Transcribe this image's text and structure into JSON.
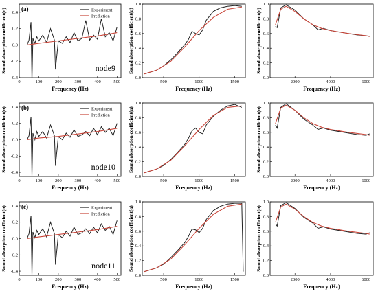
{
  "colors": {
    "experiment": "#222222",
    "prediction": "#c9463a",
    "axes": "#000000"
  },
  "chart_data": [
    {
      "type": "line",
      "row": 0,
      "col": 0,
      "panel_label": "(a)",
      "annotation": "node9",
      "legend": [
        "Experiment",
        "Prediction"
      ],
      "xlabel": "Frequency (Hz)",
      "ylabel": "Sound absorption coefficient(α)",
      "xlim": [
        0,
        520
      ],
      "ylim": [
        -0.4,
        0.5
      ],
      "xticks": [
        0,
        100,
        200,
        300,
        400,
        500
      ],
      "yticks": [
        -0.4,
        -0.2,
        0.0,
        0.2,
        0.4
      ],
      "series": [
        {
          "name": "Experiment",
          "x": [
            40,
            50,
            60,
            65,
            70,
            80,
            90,
            100,
            120,
            140,
            160,
            180,
            185,
            200,
            220,
            240,
            260,
            280,
            300,
            320,
            340,
            360,
            380,
            400,
            420,
            440,
            460,
            480,
            500
          ],
          "y": [
            0.0,
            0.06,
            0.28,
            -0.45,
            0.08,
            0.02,
            0.1,
            0.05,
            0.12,
            0.03,
            0.2,
            0.06,
            -0.3,
            0.05,
            0.02,
            0.1,
            0.03,
            0.15,
            0.05,
            0.08,
            0.3,
            0.06,
            0.12,
            0.07,
            0.32,
            0.1,
            0.15,
            0.05,
            0.22
          ]
        },
        {
          "name": "Prediction",
          "x": [
            40,
            100,
            200,
            300,
            400,
            500
          ],
          "y": [
            0.0,
            0.02,
            0.05,
            0.08,
            0.11,
            0.15
          ]
        }
      ]
    },
    {
      "type": "line",
      "row": 0,
      "col": 1,
      "xlabel": "Frequency (Hz)",
      "ylabel": "Sound absorption coefficient(α)",
      "xlim": [
        200,
        1650
      ],
      "ylim": [
        0,
        1.0
      ],
      "xticks": [
        500,
        1000,
        1500
      ],
      "yticks": [
        0.0,
        0.2,
        0.4,
        0.6,
        0.8,
        1.0
      ],
      "series": [
        {
          "name": "Experiment",
          "x": [
            230,
            300,
            400,
            500,
            600,
            700,
            800,
            850,
            900,
            950,
            1000,
            1050,
            1100,
            1200,
            1300,
            1400,
            1500,
            1600
          ],
          "y": [
            0.05,
            0.07,
            0.1,
            0.16,
            0.24,
            0.34,
            0.45,
            0.52,
            0.63,
            0.6,
            0.58,
            0.65,
            0.78,
            0.9,
            0.95,
            0.97,
            0.98,
            0.97
          ]
        },
        {
          "name": "Prediction",
          "x": [
            230,
            400,
            600,
            800,
            1000,
            1200,
            1400,
            1600
          ],
          "y": [
            0.05,
            0.1,
            0.22,
            0.42,
            0.64,
            0.82,
            0.93,
            0.96
          ]
        }
      ]
    },
    {
      "type": "line",
      "row": 0,
      "col": 2,
      "xlabel": "Frequency (Hz)",
      "ylabel": "Sound absorption coefficient(α)",
      "xlim": [
        600,
        6400
      ],
      "ylim": [
        0,
        1.0
      ],
      "xticks": [
        2000,
        4000,
        6000
      ],
      "yticks": [
        0.0,
        0.2,
        0.4,
        0.6,
        0.8,
        1.0
      ],
      "series": [
        {
          "name": "Experiment",
          "x": [
            900,
            1000,
            1200,
            1500,
            2000,
            2500,
            3000,
            3300,
            3600,
            4000,
            4500,
            5000,
            5500,
            6000,
            6200
          ],
          "y": [
            0.7,
            0.68,
            0.95,
            0.99,
            0.92,
            0.8,
            0.72,
            0.65,
            0.67,
            0.64,
            0.62,
            0.6,
            0.58,
            0.57,
            0.56
          ]
        },
        {
          "name": "Prediction",
          "x": [
            900,
            1200,
            1500,
            2000,
            2500,
            3000,
            3500,
            4000,
            5000,
            6000,
            6200
          ],
          "y": [
            0.72,
            0.93,
            0.97,
            0.9,
            0.8,
            0.72,
            0.67,
            0.64,
            0.6,
            0.57,
            0.56
          ]
        }
      ]
    },
    {
      "type": "line",
      "row": 1,
      "col": 0,
      "panel_label": "(b)",
      "annotation": "node10",
      "legend": [
        "Experiment",
        "Prediction"
      ],
      "xlabel": "Frequency (Hz)",
      "ylabel": "Sound absorption coefficient(α)",
      "xlim": [
        0,
        520
      ],
      "ylim": [
        -0.45,
        0.45
      ],
      "xticks": [
        0,
        100,
        200,
        300,
        400,
        500
      ],
      "yticks": [
        -0.4,
        -0.2,
        0.0,
        0.2,
        0.4
      ],
      "series": [
        {
          "name": "Experiment",
          "x": [
            40,
            50,
            60,
            65,
            70,
            80,
            90,
            100,
            120,
            140,
            160,
            180,
            185,
            200,
            220,
            240,
            260,
            280,
            300,
            320,
            340,
            360,
            380,
            400,
            420,
            440,
            460,
            480,
            500
          ],
          "y": [
            0.0,
            0.05,
            0.28,
            -0.45,
            0.08,
            0.0,
            0.1,
            0.04,
            0.1,
            0.02,
            0.18,
            0.05,
            -0.32,
            0.04,
            0.0,
            0.08,
            0.03,
            0.12,
            0.04,
            0.06,
            0.1,
            0.05,
            0.14,
            0.06,
            0.16,
            0.09,
            0.14,
            0.05,
            0.2
          ]
        },
        {
          "name": "Prediction",
          "x": [
            40,
            100,
            200,
            300,
            400,
            500
          ],
          "y": [
            0.0,
            0.02,
            0.04,
            0.07,
            0.1,
            0.14
          ]
        }
      ]
    },
    {
      "type": "line",
      "row": 1,
      "col": 1,
      "xlabel": "Frequency (Hz)",
      "ylabel": "Sound absorption coefficient(α)",
      "xlim": [
        200,
        1650
      ],
      "ylim": [
        0,
        1.0
      ],
      "xticks": [
        500,
        1000,
        1500
      ],
      "yticks": [
        0.0,
        0.2,
        0.4,
        0.6,
        0.8,
        1.0
      ],
      "series": [
        {
          "name": "Experiment",
          "x": [
            230,
            300,
            400,
            500,
            600,
            700,
            800,
            850,
            900,
            950,
            1000,
            1050,
            1100,
            1200,
            1300,
            1400,
            1500,
            1600
          ],
          "y": [
            0.05,
            0.07,
            0.1,
            0.15,
            0.23,
            0.33,
            0.44,
            0.52,
            0.62,
            0.66,
            0.6,
            0.58,
            0.7,
            0.82,
            0.9,
            0.96,
            0.98,
            0.94
          ]
        },
        {
          "name": "Prediction",
          "x": [
            230,
            400,
            600,
            800,
            1000,
            1200,
            1400,
            1600
          ],
          "y": [
            0.05,
            0.1,
            0.22,
            0.42,
            0.64,
            0.83,
            0.94,
            0.96
          ]
        }
      ]
    },
    {
      "type": "line",
      "row": 1,
      "col": 2,
      "xlabel": "Frequency (Hz)",
      "ylabel": "Sound absorption coefficient(α)",
      "xlim": [
        600,
        6400
      ],
      "ylim": [
        0,
        1.0
      ],
      "xticks": [
        2000,
        4000,
        6000
      ],
      "yticks": [
        0.0,
        0.2,
        0.4,
        0.6,
        0.8,
        1.0
      ],
      "series": [
        {
          "name": "Experiment",
          "x": [
            900,
            1000,
            1200,
            1500,
            2000,
            2500,
            3000,
            3300,
            3600,
            4000,
            4500,
            5000,
            5500,
            6000,
            6200
          ],
          "y": [
            0.7,
            0.66,
            0.94,
            0.99,
            0.9,
            0.78,
            0.7,
            0.64,
            0.66,
            0.63,
            0.61,
            0.59,
            0.57,
            0.56,
            0.58
          ]
        },
        {
          "name": "Prediction",
          "x": [
            900,
            1200,
            1500,
            2000,
            2500,
            3000,
            3500,
            4000,
            5000,
            6000,
            6200
          ],
          "y": [
            0.72,
            0.93,
            0.97,
            0.9,
            0.8,
            0.72,
            0.67,
            0.64,
            0.6,
            0.57,
            0.56
          ]
        }
      ]
    },
    {
      "type": "line",
      "row": 2,
      "col": 0,
      "panel_label": "(c)",
      "annotation": "node11",
      "legend": [
        "Experiment",
        "Prediction"
      ],
      "xlabel": "Frequency (Hz)",
      "ylabel": "Sound absorption coefficient(α)",
      "xlim": [
        0,
        520
      ],
      "ylim": [
        -0.45,
        0.45
      ],
      "xticks": [
        0,
        100,
        200,
        300,
        400,
        500
      ],
      "yticks": [
        -0.4,
        -0.2,
        0.0,
        0.2,
        0.4
      ],
      "series": [
        {
          "name": "Experiment",
          "x": [
            40,
            50,
            60,
            65,
            70,
            80,
            90,
            100,
            120,
            140,
            160,
            180,
            185,
            200,
            220,
            240,
            260,
            280,
            300,
            320,
            340,
            360,
            380,
            400,
            420,
            440,
            460,
            480,
            500
          ],
          "y": [
            0.0,
            0.06,
            0.28,
            -0.45,
            0.08,
            0.01,
            0.1,
            0.05,
            0.12,
            0.02,
            0.2,
            0.06,
            -0.32,
            0.05,
            0.01,
            0.09,
            0.03,
            0.14,
            0.05,
            0.07,
            0.12,
            0.06,
            0.14,
            0.07,
            0.18,
            0.1,
            0.15,
            0.05,
            0.22
          ]
        },
        {
          "name": "Prediction",
          "x": [
            40,
            100,
            200,
            300,
            400,
            500
          ],
          "y": [
            0.0,
            0.02,
            0.05,
            0.08,
            0.11,
            0.15
          ]
        }
      ]
    },
    {
      "type": "line",
      "row": 2,
      "col": 1,
      "xlabel": "Frequency (Hz)",
      "ylabel": "Sound absorption coefficient(α)",
      "xlim": [
        200,
        1650
      ],
      "ylim": [
        0,
        1.0
      ],
      "xticks": [
        500,
        1000,
        1500
      ],
      "yticks": [
        0.0,
        0.2,
        0.4,
        0.6,
        0.8,
        1.0
      ],
      "series": [
        {
          "name": "Experiment",
          "x": [
            230,
            300,
            400,
            500,
            600,
            700,
            800,
            850,
            900,
            950,
            1000,
            1050,
            1100,
            1200,
            1300,
            1400,
            1500,
            1600,
            1620
          ],
          "y": [
            0.05,
            0.07,
            0.1,
            0.15,
            0.24,
            0.34,
            0.45,
            0.53,
            0.63,
            0.62,
            0.58,
            0.64,
            0.76,
            0.88,
            0.94,
            0.97,
            0.98,
            0.98,
            0.05
          ]
        },
        {
          "name": "Prediction",
          "x": [
            230,
            400,
            600,
            800,
            1000,
            1200,
            1400,
            1600
          ],
          "y": [
            0.05,
            0.1,
            0.22,
            0.42,
            0.64,
            0.83,
            0.94,
            0.97
          ]
        }
      ]
    },
    {
      "type": "line",
      "row": 2,
      "col": 2,
      "xlabel": "Frequency (Hz)",
      "ylabel": "Sound absorption coefficient(α)",
      "xlim": [
        600,
        6400
      ],
      "ylim": [
        0,
        1.0
      ],
      "xticks": [
        2000,
        4000,
        6000
      ],
      "yticks": [
        0.0,
        0.2,
        0.4,
        0.6,
        0.8,
        1.0
      ],
      "series": [
        {
          "name": "Experiment",
          "x": [
            900,
            1000,
            1200,
            1500,
            2000,
            2500,
            3000,
            3300,
            3600,
            4000,
            4500,
            5000,
            5500,
            6000,
            6200
          ],
          "y": [
            0.7,
            0.67,
            0.95,
            0.99,
            0.91,
            0.79,
            0.71,
            0.64,
            0.66,
            0.63,
            0.61,
            0.59,
            0.57,
            0.56,
            0.58
          ]
        },
        {
          "name": "Prediction",
          "x": [
            900,
            1200,
            1500,
            2000,
            2500,
            3000,
            3500,
            4000,
            5000,
            6000,
            6200
          ],
          "y": [
            0.72,
            0.93,
            0.97,
            0.9,
            0.8,
            0.72,
            0.67,
            0.64,
            0.6,
            0.57,
            0.56
          ]
        }
      ]
    }
  ]
}
